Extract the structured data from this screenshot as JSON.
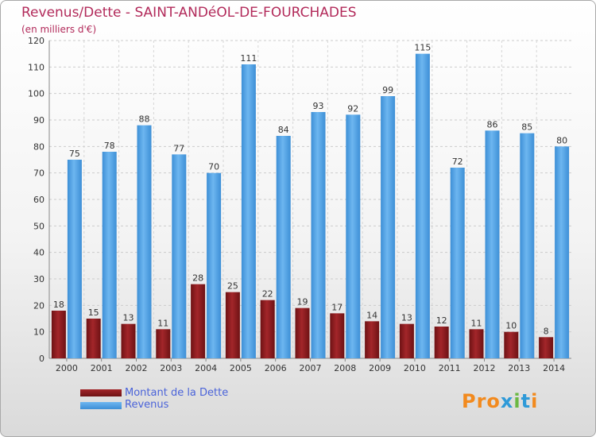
{
  "header": {
    "title": "Revenus/Dette - SAINT-ANDéOL-DE-FOURCHADES",
    "subtitle": "(en milliers d'€)"
  },
  "colors": {
    "debt": "#6e1214",
    "debt_light": "#a3262a",
    "revenue": "#3d8fd6",
    "revenue_light": "#6db6f0",
    "title": "#b22a5a",
    "legend_text": "#4a63d9"
  },
  "legend": {
    "debt_label": "Montant de la Dette",
    "revenue_label": "Revenus"
  },
  "logo": {
    "parts": [
      "Pro",
      "x",
      "i",
      "t",
      "i"
    ]
  },
  "chart_data": {
    "type": "bar",
    "title": "Revenus/Dette - SAINT-ANDéOL-DE-FOURCHADES",
    "subtitle": "(en milliers d'€)",
    "xlabel": "",
    "ylabel": "",
    "ylim": [
      0,
      120
    ],
    "yticks": [
      0,
      10,
      20,
      30,
      40,
      50,
      60,
      70,
      80,
      90,
      100,
      110,
      120
    ],
    "grid": true,
    "legend_position": "bottom-left",
    "categories": [
      "2000",
      "2001",
      "2002",
      "2003",
      "2004",
      "2005",
      "2006",
      "2007",
      "2008",
      "2009",
      "2010",
      "2011",
      "2012",
      "2013",
      "2014"
    ],
    "series": [
      {
        "name": "Montant de la Dette",
        "values": [
          18,
          15,
          13,
          11,
          28,
          25,
          22,
          19,
          17,
          14,
          13,
          12,
          11,
          10,
          8
        ]
      },
      {
        "name": "Revenus",
        "values": [
          75,
          78,
          88,
          77,
          70,
          111,
          84,
          93,
          92,
          99,
          115,
          72,
          86,
          85,
          80
        ]
      }
    ]
  }
}
